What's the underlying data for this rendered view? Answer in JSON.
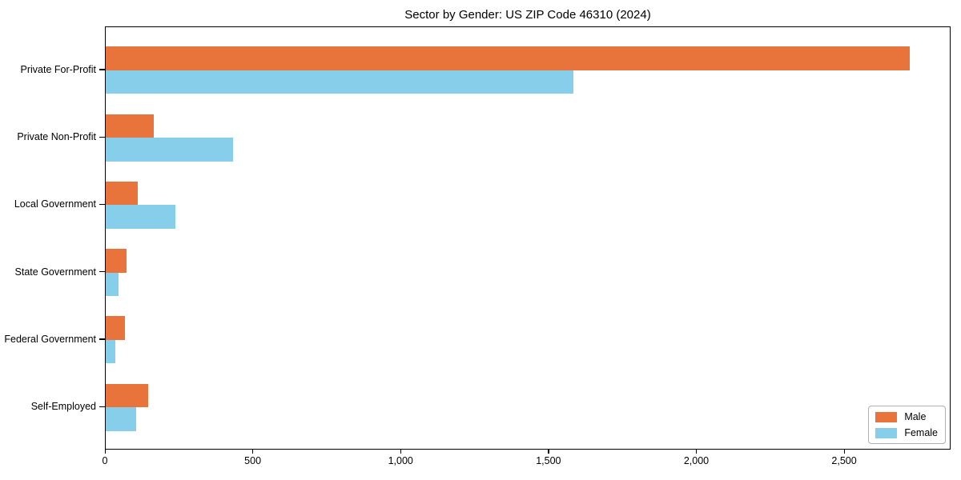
{
  "chart_data": {
    "type": "bar",
    "orientation": "horizontal",
    "title": "Sector by Gender: US ZIP Code 46310 (2024)",
    "categories": [
      "Private For-Profit",
      "Private Non-Profit",
      "Local Government",
      "State Government",
      "Federal Government",
      "Self-Employed"
    ],
    "series": [
      {
        "name": "Male",
        "color": "#E8743B",
        "values": [
          2718,
          162,
          107,
          71,
          65,
          143
        ]
      },
      {
        "name": "Female",
        "color": "#87CEEB",
        "values": [
          1581,
          430,
          235,
          44,
          32,
          103
        ]
      }
    ],
    "xlabel": "",
    "ylabel": "",
    "xlim": [
      0,
      2860
    ],
    "xticks": {
      "values": [
        0,
        500,
        1000,
        1500,
        2000,
        2500
      ],
      "labels": [
        "0",
        "500",
        "1,000",
        "1,500",
        "2,000",
        "2,500"
      ]
    },
    "ylim_units": [
      -0.64,
      5.64
    ],
    "bar_height_units": 0.35,
    "grid": false,
    "legend": {
      "position": "lower right",
      "entries": [
        "Male",
        "Female"
      ]
    }
  }
}
